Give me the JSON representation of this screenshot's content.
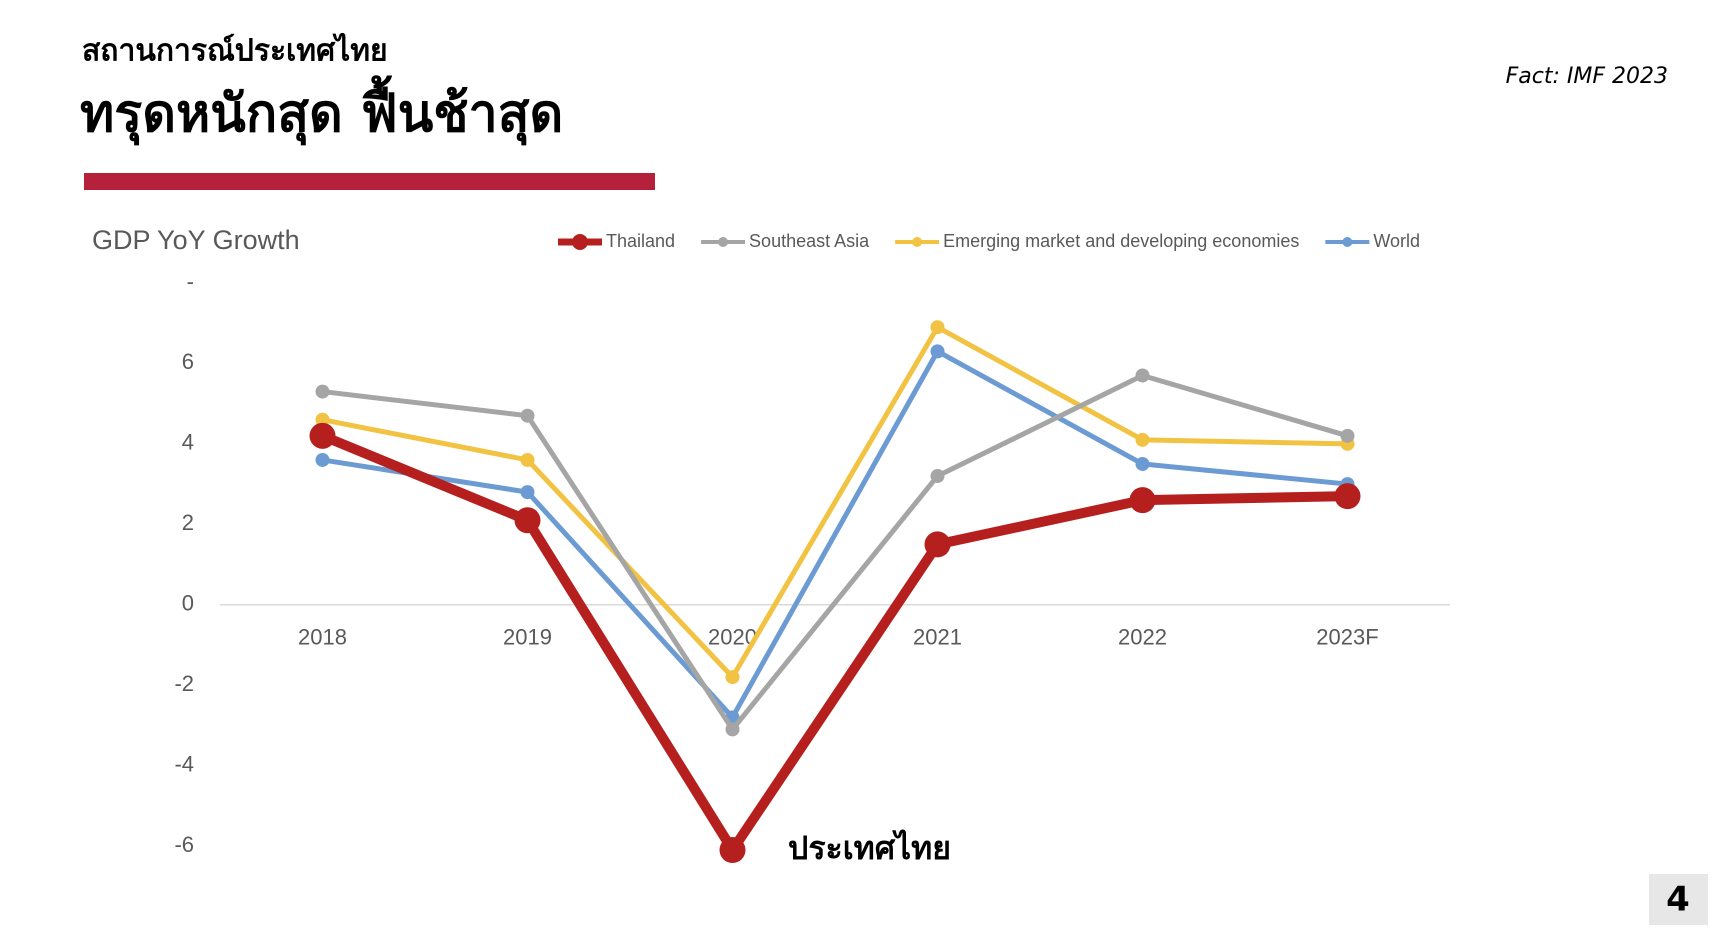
{
  "header": {
    "subtitle": "สถานการณ์ประเทศไทย",
    "title": "ทรุดหนักสุด ฟื้นช้าสุด",
    "source": "Fact: IMF 2023",
    "page": "4"
  },
  "chart_data": {
    "type": "line",
    "title": "GDP YoY Growth",
    "categories": [
      "2018",
      "2019",
      "2020",
      "2021",
      "2022",
      "2023F"
    ],
    "series": [
      {
        "name": "Thailand",
        "color": "#b5201f",
        "values": [
          4.2,
          2.1,
          -6.1,
          1.5,
          2.6,
          2.7
        ]
      },
      {
        "name": "Southeast Asia",
        "color": "#a5a5a5",
        "values": [
          5.3,
          4.7,
          -3.1,
          3.2,
          5.7,
          4.2
        ]
      },
      {
        "name": "Emerging market and developing economies",
        "color": "#f2c342",
        "values": [
          4.6,
          3.6,
          -1.8,
          6.9,
          4.1,
          4.0
        ]
      },
      {
        "name": "World",
        "color": "#6b9bd2",
        "values": [
          3.6,
          2.8,
          -2.8,
          6.3,
          3.5,
          3.0
        ]
      }
    ],
    "ylim": [
      -6,
      8
    ],
    "yticks": [
      -6,
      -4,
      -2,
      0,
      2,
      4,
      6,
      {
        "value": 8,
        "label": "-"
      }
    ],
    "annotation": "ประเทศไทย"
  }
}
